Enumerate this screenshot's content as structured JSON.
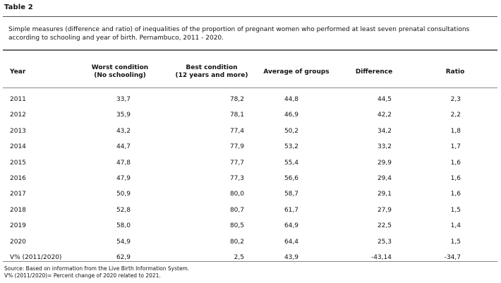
{
  "title": "Table 2",
  "caption": "Simple measures (difference and ratio) of inequalities of the proportion of pregnant women who performed at least seven prenatal consultations according to schooling and year of birth. Pernambuco, 2011  - 2020.",
  "columns": {
    "year": "Year",
    "worst_line1": "Worst condition",
    "worst_line2": "(No schooling)",
    "best_line1": "Best condition",
    "best_line2": "(12 years and more)",
    "average": "Average of groups",
    "difference": "Difference",
    "ratio": "Ratio"
  },
  "rows": [
    {
      "year": "2011",
      "worst": "33,7",
      "best": "78,2",
      "average": "44,8",
      "difference": "44,5",
      "ratio": "2,3"
    },
    {
      "year": "2012",
      "worst": "35,9",
      "best": "78,1",
      "average": "46,9",
      "difference": "42,2",
      "ratio": "2,2"
    },
    {
      "year": "2013",
      "worst": "43,2",
      "best": "77,4",
      "average": "50,2",
      "difference": "34,2",
      "ratio": "1,8"
    },
    {
      "year": "2014",
      "worst": "44,7",
      "best": "77,9",
      "average": "53,2",
      "difference": "33,2",
      "ratio": "1,7"
    },
    {
      "year": "2015",
      "worst": "47,8",
      "best": "77,7",
      "average": "55,4",
      "difference": "29,9",
      "ratio": "1,6"
    },
    {
      "year": "2016",
      "worst": "47,9",
      "best": "77,3",
      "average": "56,6",
      "difference": "29,4",
      "ratio": "1,6"
    },
    {
      "year": "2017",
      "worst": "50,9",
      "best": "80,0",
      "average": "58,7",
      "difference": "29,1",
      "ratio": "1,6"
    },
    {
      "year": "2018",
      "worst": "52,8",
      "best": "80,7",
      "average": "61,7",
      "difference": "27,9",
      "ratio": "1,5"
    },
    {
      "year": "2019",
      "worst": "58,0",
      "best": "80,5",
      "average": "64,9",
      "difference": "22,5",
      "ratio": "1,4"
    },
    {
      "year": "2020",
      "worst": "54,9",
      "best": "80,2",
      "average": "64,4",
      "difference": "25,3",
      "ratio": "1,5"
    },
    {
      "year": "V% (2011/2020)",
      "worst": "62,9",
      "best": "2,5",
      "average": "43,9",
      "difference": "-43,14",
      "ratio": "-34,7"
    }
  ],
  "source_note": "Source: Based on information from the Live Birth Information System.",
  "variation_note": "V% (2011/2020)= Percent change of 2020 related to 2021."
}
